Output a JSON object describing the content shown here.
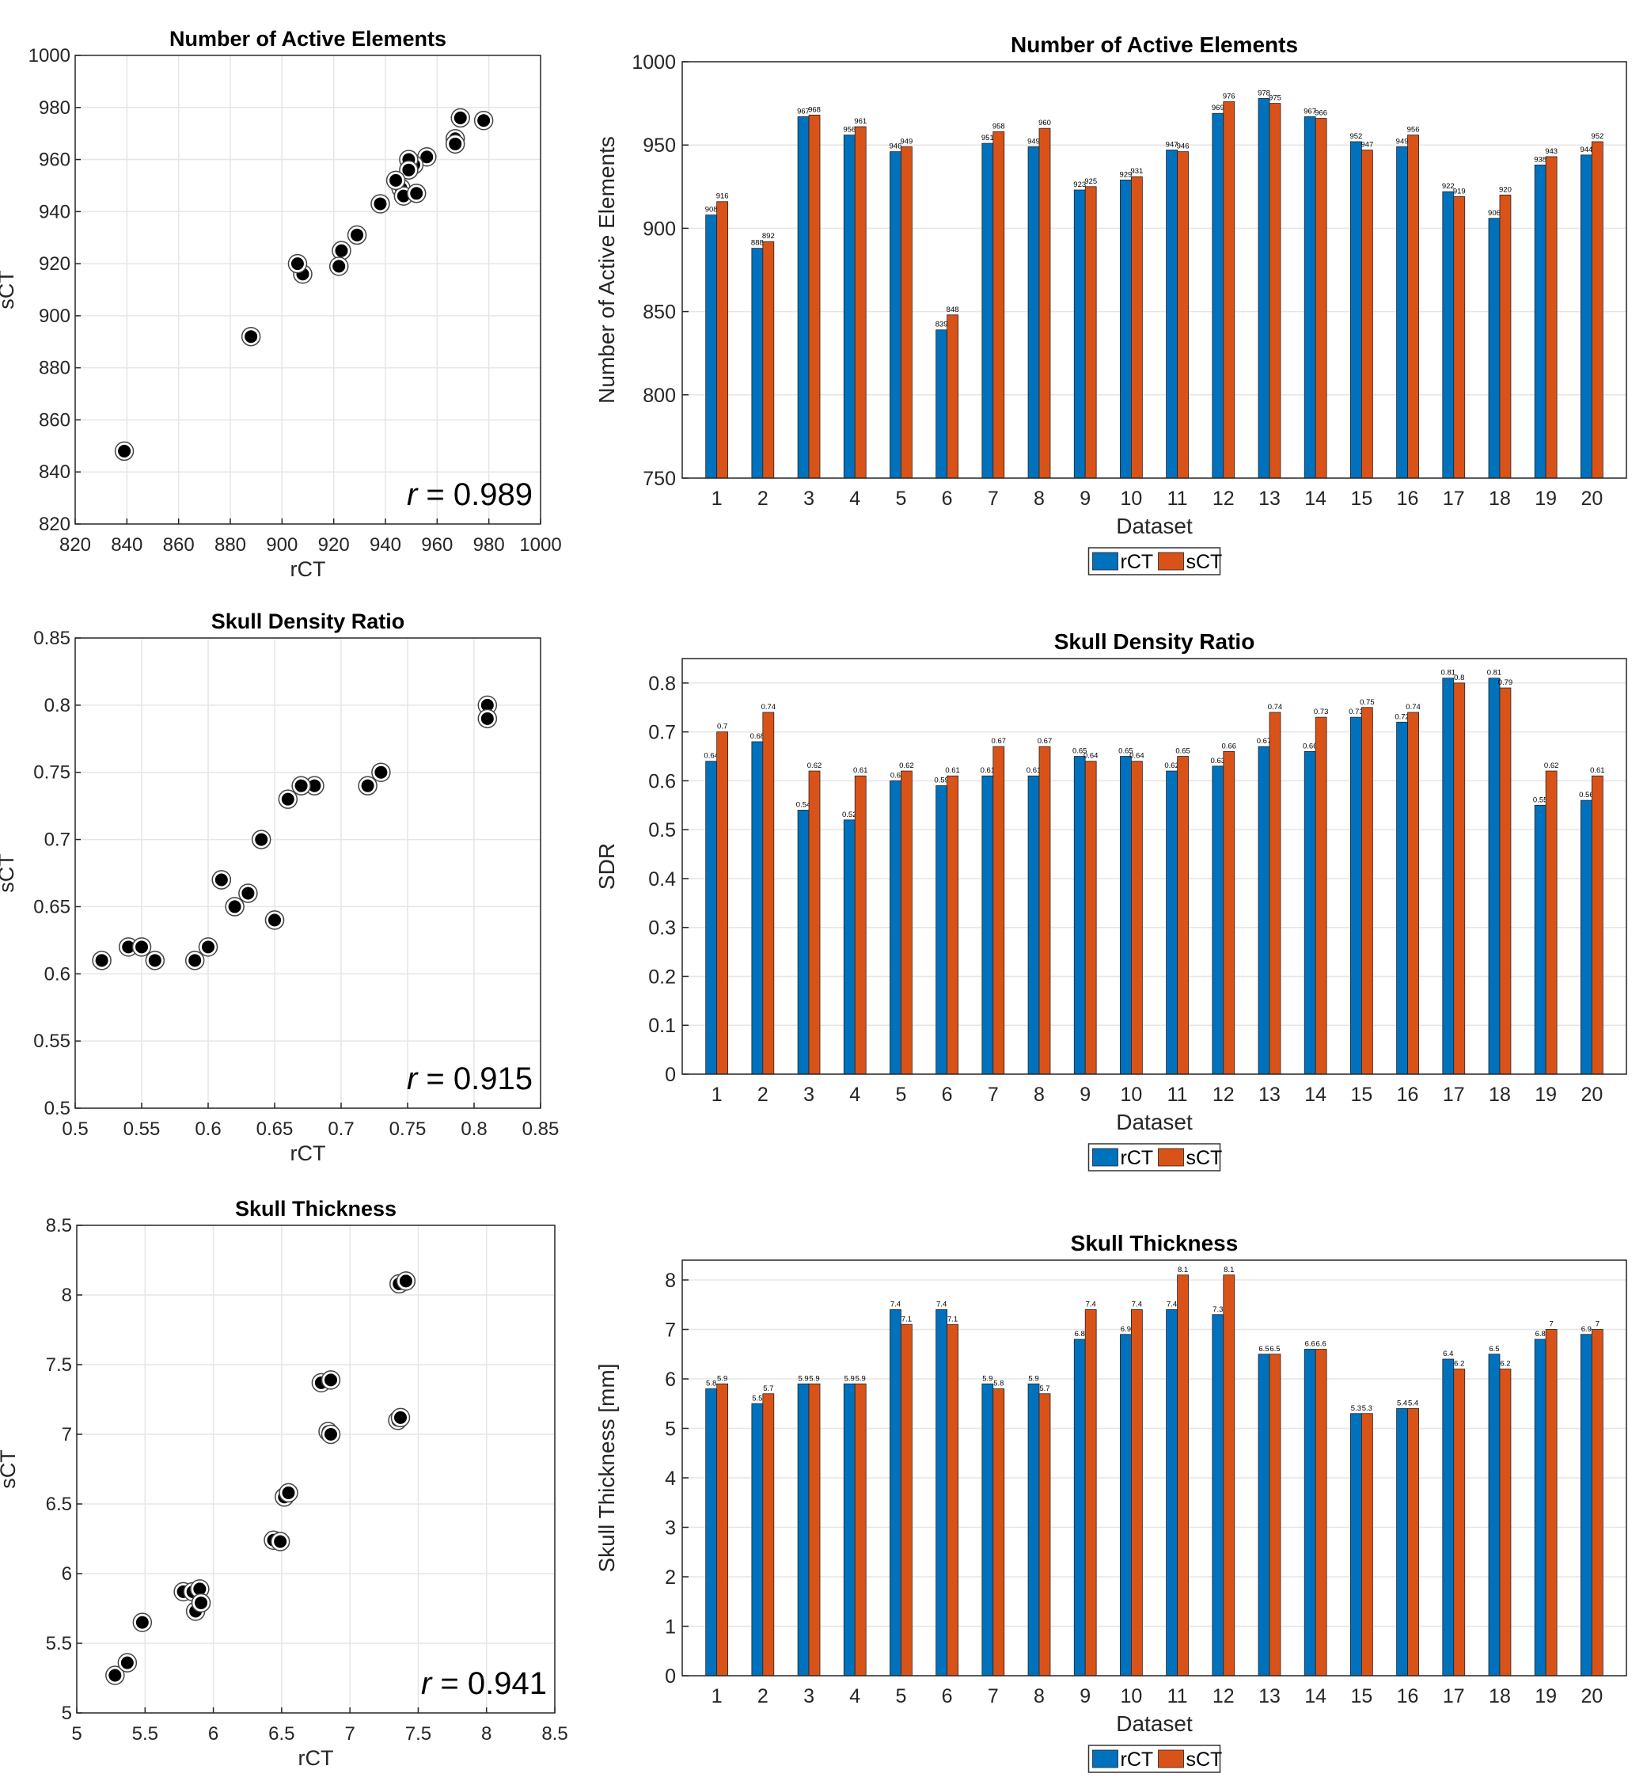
{
  "colors": {
    "rct": "#0072BD",
    "sct": "#D95319",
    "axis": "#262626",
    "grid": "#e6e6e6",
    "marker": "#000000"
  },
  "chart_data": [
    {
      "type": "scatter",
      "title": "Number of Active Elements",
      "xlabel": "rCT",
      "ylabel": "sCT",
      "xlim": [
        820,
        1000
      ],
      "ylim": [
        820,
        1000
      ],
      "xticks": [
        820,
        840,
        860,
        880,
        900,
        920,
        940,
        960,
        980,
        1000
      ],
      "yticks": [
        820,
        840,
        860,
        880,
        900,
        920,
        940,
        960,
        980,
        1000
      ],
      "tick_labels_x": [
        "820",
        "840",
        "860",
        "880",
        "900",
        "920",
        "940",
        "960",
        "980",
        "1000"
      ],
      "tick_labels_y": [
        "820",
        "840",
        "860",
        "880",
        "900",
        "920",
        "940",
        "960",
        "980",
        "1000"
      ],
      "x": [
        908,
        888,
        967,
        956,
        946,
        839,
        951,
        949,
        923,
        929,
        947,
        969,
        978,
        967,
        952,
        949,
        922,
        906,
        938,
        944
      ],
      "y": [
        916,
        892,
        968,
        961,
        949,
        848,
        958,
        960,
        925,
        931,
        946,
        976,
        975,
        966,
        947,
        956,
        919,
        920,
        943,
        952
      ],
      "annotation_r": "r",
      "annotation_value": " = 0.989",
      "grid": true
    },
    {
      "type": "bar",
      "title": "Number of Active Elements",
      "xlabel": "Dataset",
      "ylabel": "Number of Active Elements",
      "ylim": [
        750,
        1000
      ],
      "yticks": [
        750,
        800,
        850,
        900,
        950,
        1000
      ],
      "tick_labels_y": [
        "750",
        "800",
        "850",
        "900",
        "950",
        "1000"
      ],
      "categories": [
        "1",
        "2",
        "3",
        "4",
        "5",
        "6",
        "7",
        "8",
        "9",
        "10",
        "11",
        "12",
        "13",
        "14",
        "15",
        "16",
        "17",
        "18",
        "19",
        "20"
      ],
      "series": [
        {
          "name": "rCT",
          "values": [
            908,
            888,
            967,
            956,
            946,
            839,
            951,
            949,
            923,
            929,
            947,
            969,
            978,
            967,
            952,
            949,
            922,
            906,
            938,
            944
          ],
          "labels": [
            "908",
            "888",
            "967",
            "956",
            "946",
            "839",
            "951",
            "949",
            "923",
            "929",
            "947",
            "969",
            "978",
            "967",
            "952",
            "949",
            "922",
            "906",
            "938",
            "944"
          ]
        },
        {
          "name": "sCT",
          "values": [
            916,
            892,
            968,
            961,
            949,
            848,
            958,
            960,
            925,
            931,
            946,
            976,
            975,
            966,
            947,
            956,
            919,
            920,
            943,
            952
          ],
          "labels": [
            "916",
            "892",
            "968",
            "961",
            "949",
            "848",
            "958",
            "960",
            "925",
            "931",
            "946",
            "976",
            "975",
            "966",
            "947",
            "956",
            "919",
            "920",
            "943",
            "952"
          ]
        }
      ],
      "legend": "bottom-center",
      "grid": true
    },
    {
      "type": "scatter",
      "title": "Skull Density Ratio",
      "xlabel": "rCT",
      "ylabel": "sCT",
      "xlim": [
        0.5,
        0.85
      ],
      "ylim": [
        0.5,
        0.85
      ],
      "xticks": [
        0.5,
        0.55,
        0.6,
        0.65,
        0.7,
        0.75,
        0.8,
        0.85
      ],
      "yticks": [
        0.5,
        0.55,
        0.6,
        0.65,
        0.7,
        0.75,
        0.8,
        0.85
      ],
      "tick_labels_x": [
        "0.5",
        "0.55",
        "0.6",
        "0.65",
        "0.7",
        "0.75",
        "0.8",
        "0.85"
      ],
      "tick_labels_y": [
        "0.5",
        "0.55",
        "0.6",
        "0.65",
        "0.7",
        "0.75",
        "0.8",
        "0.85"
      ],
      "x": [
        0.64,
        0.68,
        0.54,
        0.52,
        0.6,
        0.59,
        0.61,
        0.61,
        0.65,
        0.65,
        0.62,
        0.63,
        0.67,
        0.66,
        0.73,
        0.72,
        0.81,
        0.81,
        0.55,
        0.56
      ],
      "y": [
        0.7,
        0.74,
        0.62,
        0.61,
        0.62,
        0.61,
        0.67,
        0.67,
        0.64,
        0.64,
        0.65,
        0.66,
        0.74,
        0.73,
        0.75,
        0.74,
        0.8,
        0.79,
        0.62,
        0.61
      ],
      "annotation_r": "r",
      "annotation_value": " = 0.915",
      "grid": true
    },
    {
      "type": "bar",
      "title": "Skull Density Ratio",
      "xlabel": "Dataset",
      "ylabel": "SDR",
      "ylim": [
        0,
        0.85
      ],
      "yticks": [
        0,
        0.1,
        0.2,
        0.3,
        0.4,
        0.5,
        0.6,
        0.7,
        0.8
      ],
      "tick_labels_y": [
        "0",
        "0.1",
        "0.2",
        "0.3",
        "0.4",
        "0.5",
        "0.6",
        "0.7",
        "0.8"
      ],
      "categories": [
        "1",
        "2",
        "3",
        "4",
        "5",
        "6",
        "7",
        "8",
        "9",
        "10",
        "11",
        "12",
        "13",
        "14",
        "15",
        "16",
        "17",
        "18",
        "19",
        "20"
      ],
      "series": [
        {
          "name": "rCT",
          "values": [
            0.64,
            0.68,
            0.54,
            0.52,
            0.6,
            0.59,
            0.61,
            0.61,
            0.65,
            0.65,
            0.62,
            0.63,
            0.67,
            0.66,
            0.73,
            0.72,
            0.81,
            0.81,
            0.55,
            0.56
          ],
          "labels": [
            "0.64",
            "0.68",
            "0.54",
            "0.52",
            "0.6",
            "0.59",
            "0.61",
            "0.61",
            "0.65",
            "0.65",
            "0.62",
            "0.63",
            "0.67",
            "0.66",
            "0.73",
            "0.72",
            "0.81",
            "0.81",
            "0.55",
            "0.56"
          ]
        },
        {
          "name": "sCT",
          "values": [
            0.7,
            0.74,
            0.62,
            0.61,
            0.62,
            0.61,
            0.67,
            0.67,
            0.64,
            0.64,
            0.65,
            0.66,
            0.74,
            0.73,
            0.75,
            0.74,
            0.8,
            0.79,
            0.62,
            0.61
          ],
          "labels": [
            "0.7",
            "0.74",
            "0.62",
            "0.61",
            "0.62",
            "0.61",
            "0.67",
            "0.67",
            "0.64",
            "0.64",
            "0.65",
            "0.66",
            "0.74",
            "0.73",
            "0.75",
            "0.74",
            "0.8",
            "0.79",
            "0.62",
            "0.61"
          ]
        }
      ],
      "legend": "bottom-center",
      "grid": true
    },
    {
      "type": "scatter",
      "title": "Skull Thickness",
      "xlabel": "rCT",
      "ylabel": "sCT",
      "xlim": [
        5,
        8.5
      ],
      "ylim": [
        5,
        8.5
      ],
      "xticks": [
        5,
        5.5,
        6,
        6.5,
        7,
        7.5,
        8,
        8.5
      ],
      "yticks": [
        5,
        5.5,
        6,
        6.5,
        7,
        7.5,
        8,
        8.5
      ],
      "tick_labels_x": [
        "5",
        "5.5",
        "6",
        "6.5",
        "7",
        "7.5",
        "8",
        "8.5"
      ],
      "tick_labels_y": [
        "5",
        "5.5",
        "6",
        "6.5",
        "7",
        "7.5",
        "8",
        "8.5"
      ],
      "x": [
        5.28,
        5.37,
        5.48,
        5.78,
        5.85,
        5.9,
        5.87,
        5.91,
        6.44,
        6.49,
        6.52,
        6.55,
        6.79,
        6.86,
        6.84,
        6.86,
        7.35,
        7.37,
        7.36,
        7.41
      ],
      "y": [
        5.27,
        5.36,
        5.65,
        5.87,
        5.87,
        5.89,
        5.73,
        5.79,
        6.24,
        6.23,
        6.55,
        6.58,
        7.37,
        7.39,
        7.02,
        7.0,
        7.1,
        7.12,
        8.08,
        8.1
      ],
      "annotation_r": "r",
      "annotation_value": " = 0.941",
      "grid": true
    },
    {
      "type": "bar",
      "title": "Skull Thickness",
      "xlabel": "Dataset",
      "ylabel": "Skull Thickness [mm]",
      "ylim": [
        0,
        8.4
      ],
      "yticks": [
        0,
        1,
        2,
        3,
        4,
        5,
        6,
        7,
        8
      ],
      "tick_labels_y": [
        "0",
        "1",
        "2",
        "3",
        "4",
        "5",
        "6",
        "7",
        "8"
      ],
      "categories": [
        "1",
        "2",
        "3",
        "4",
        "5",
        "6",
        "7",
        "8",
        "9",
        "10",
        "11",
        "12",
        "13",
        "14",
        "15",
        "16",
        "17",
        "18",
        "19",
        "20"
      ],
      "series": [
        {
          "name": "rCT",
          "values": [
            5.8,
            5.5,
            5.9,
            5.9,
            7.4,
            7.4,
            5.9,
            5.9,
            6.8,
            6.9,
            7.4,
            7.3,
            6.5,
            6.6,
            5.3,
            5.4,
            6.4,
            6.5,
            6.8,
            6.9
          ],
          "labels": [
            "5.8",
            "5.5",
            "5.9",
            "5.9",
            "7.4",
            "7.4",
            "5.9",
            "5.9",
            "6.8",
            "6.9",
            "7.4",
            "7.3",
            "6.5",
            "6.6",
            "5.3",
            "5.4",
            "6.4",
            "6.5",
            "6.8",
            "6.9"
          ]
        },
        {
          "name": "sCT",
          "values": [
            5.9,
            5.7,
            5.9,
            5.9,
            7.1,
            7.1,
            5.8,
            5.7,
            7.4,
            7.4,
            8.1,
            8.1,
            6.5,
            6.6,
            5.3,
            5.4,
            6.2,
            6.2,
            7.0,
            7.0
          ],
          "labels": [
            "5.9",
            "5.7",
            "5.9",
            "5.9",
            "7.1",
            "7.1",
            "5.8",
            "5.7",
            "7.4",
            "7.4",
            "8.1",
            "8.1",
            "6.5",
            "6.6",
            "5.3",
            "5.4",
            "6.2",
            "6.2",
            "7",
            "7"
          ]
        }
      ],
      "legend": "bottom-center",
      "grid": true
    }
  ]
}
